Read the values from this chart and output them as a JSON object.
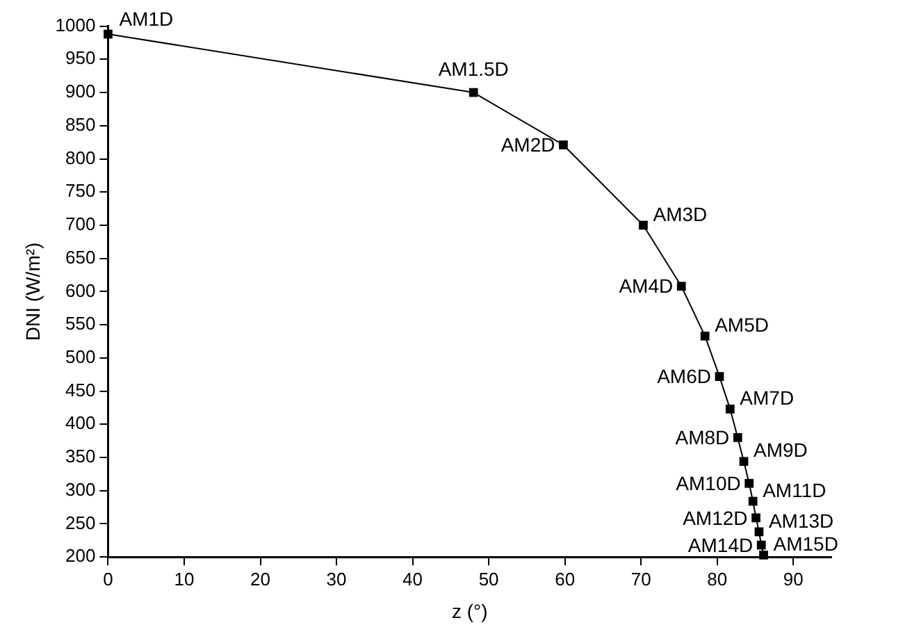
{
  "chart_data": {
    "type": "line",
    "xlabel": "z (°)",
    "ylabel": "DNI (W/m²)",
    "x": [
      0,
      48,
      59.8,
      70.3,
      75.3,
      78.4,
      80.3,
      81.7,
      82.7,
      83.5,
      84.2,
      84.7,
      85.1,
      85.5,
      85.8,
      86.1
    ],
    "series": [
      {
        "color": "#000000",
        "values": [
          988,
          900,
          821,
          700,
          608,
          533,
          472,
          423,
          380,
          344,
          311,
          284,
          259,
          238,
          218,
          203
        ]
      }
    ],
    "xlim": [
      0,
      95
    ],
    "xticks": [
      0,
      10,
      20,
      30,
      40,
      50,
      60,
      70,
      80,
      90
    ],
    "ylim": [
      200,
      1000
    ],
    "yticks": [
      200,
      250,
      300,
      350,
      400,
      450,
      500,
      550,
      600,
      650,
      700,
      750,
      800,
      850,
      900,
      950,
      1000
    ],
    "grid": false,
    "legend": false,
    "marker": "square",
    "line_style": "solid",
    "annotations": [
      {
        "text": "AM1D",
        "x": 0,
        "y": 988
      },
      {
        "text": "AM1.5D",
        "x": 48,
        "y": 900
      },
      {
        "text": "AM2D",
        "x": 59.8,
        "y": 821
      },
      {
        "text": "AM3D",
        "x": 70.3,
        "y": 700
      },
      {
        "text": "AM4D",
        "x": 75.3,
        "y": 608
      },
      {
        "text": "AM5D",
        "x": 78.4,
        "y": 533
      },
      {
        "text": "AM6D",
        "x": 80.3,
        "y": 472
      },
      {
        "text": "AM7D",
        "x": 81.7,
        "y": 423
      },
      {
        "text": "AM8D",
        "x": 82.7,
        "y": 380
      },
      {
        "text": "AM9D",
        "x": 83.5,
        "y": 344
      },
      {
        "text": "AM10D",
        "x": 84.2,
        "y": 311
      },
      {
        "text": "AM11D",
        "x": 84.7,
        "y": 284
      },
      {
        "text": "AM12D",
        "x": 85.1,
        "y": 259
      },
      {
        "text": "AM13D",
        "x": 85.5,
        "y": 238
      },
      {
        "text": "AM14D",
        "x": 85.8,
        "y": 218
      },
      {
        "text": "AM15D",
        "x": 86.1,
        "y": 203
      }
    ]
  }
}
